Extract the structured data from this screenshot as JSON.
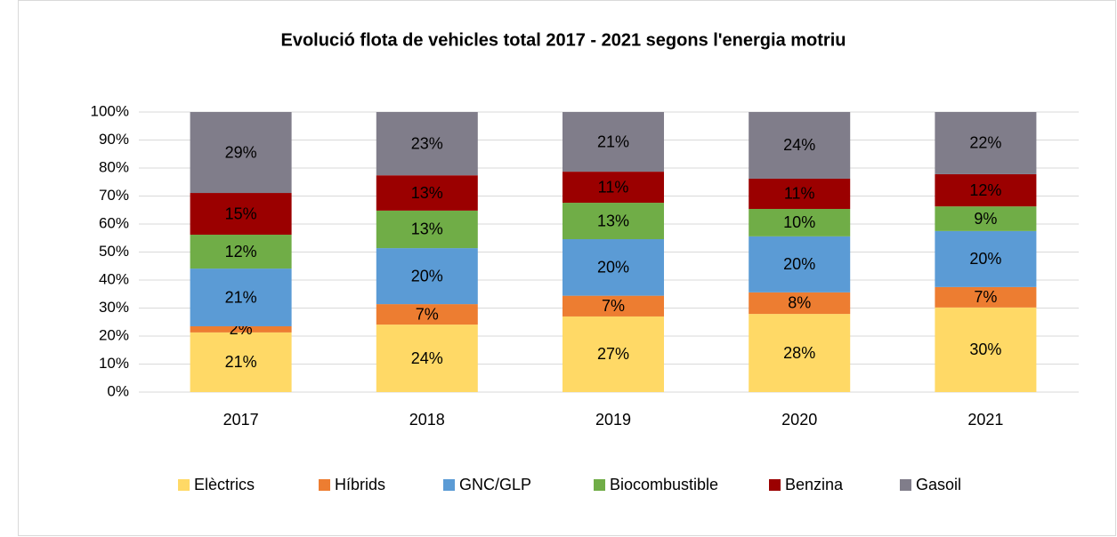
{
  "chart_data": {
    "type": "stacked_bar",
    "title": "Evolució flota de vehicles total  2017 - 2021 segons l'energia motriu",
    "categories": [
      "2017",
      "2018",
      "2019",
      "2020",
      "2021"
    ],
    "series": [
      {
        "name": "Elèctrics",
        "color": "#FFD966",
        "values": [
          21.3,
          24.1,
          27.0,
          27.9,
          30.2
        ],
        "value_labels": [
          "21%",
          "24%",
          "27%",
          "28%",
          "30%"
        ]
      },
      {
        "name": "Híbrids",
        "color": "#ED7D31",
        "values": [
          2.2,
          7.3,
          7.4,
          7.7,
          7.3
        ],
        "value_labels": [
          "2%",
          "7%",
          "7%",
          "8%",
          "7%"
        ]
      },
      {
        "name": "GNC/GLP",
        "color": "#5B9BD5",
        "values": [
          20.6,
          20.0,
          20.2,
          20.0,
          20.0
        ],
        "value_labels": [
          "21%",
          "20%",
          "20%",
          "20%",
          "20%"
        ]
      },
      {
        "name": "Biocombustible",
        "color": "#70AD47",
        "values": [
          12.1,
          13.4,
          13.0,
          9.8,
          8.8
        ],
        "value_labels": [
          "12%",
          "13%",
          "13%",
          "10%",
          "9%"
        ]
      },
      {
        "name": "Benzina",
        "color": "#9B0000",
        "values": [
          14.9,
          12.6,
          11.1,
          10.8,
          11.5
        ],
        "value_labels": [
          "15%",
          "13%",
          "11%",
          "11%",
          "12%"
        ]
      },
      {
        "name": "Gasoil",
        "color": "#807D8A",
        "values": [
          28.9,
          22.6,
          21.3,
          23.8,
          22.2
        ],
        "value_labels": [
          "29%",
          "23%",
          "21%",
          "24%",
          "22%"
        ]
      }
    ],
    "ylim": [
      0,
      100
    ],
    "yticks": [
      {
        "value": 0,
        "label": "0%"
      },
      {
        "value": 10,
        "label": "10%"
      },
      {
        "value": 20,
        "label": "20%"
      },
      {
        "value": 30,
        "label": "30%"
      },
      {
        "value": 40,
        "label": "40%"
      },
      {
        "value": 50,
        "label": "50%"
      },
      {
        "value": 60,
        "label": "60%"
      },
      {
        "value": 70,
        "label": "70%"
      },
      {
        "value": 80,
        "label": "80%"
      },
      {
        "value": 90,
        "label": "90%"
      },
      {
        "value": 100,
        "label": "100%"
      }
    ],
    "grid": true,
    "legend": "bottom"
  }
}
